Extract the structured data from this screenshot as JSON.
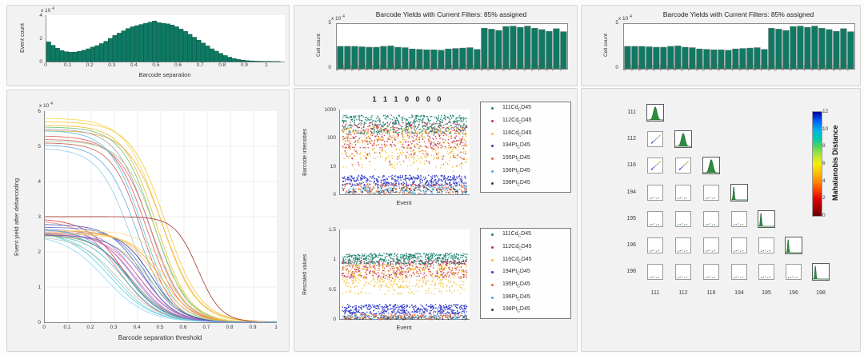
{
  "colors": {
    "panel_bg": "#f2f2f2",
    "panel_border": "#d5d5d5",
    "plot_bg": "#ffffff",
    "axis": "#8c8c8c",
    "grid": "#ececec",
    "bar_fill": "#0f7a63",
    "bar_edge": "#4f6e66",
    "hist_edge": "#0a5546",
    "diag_hist_green": "#2e8b3f"
  },
  "legend": {
    "entries": [
      {
        "label": "111Cd_CD45",
        "pre": "111Cd",
        "sub": "C",
        "post": "D45",
        "color": "#1a7f6e"
      },
      {
        "label": "112Cd_CD45",
        "pre": "112Cd",
        "sub": "C",
        "post": "D45",
        "color": "#c23152"
      },
      {
        "label": "116Cd_CD45",
        "pre": "116Cd",
        "sub": "C",
        "post": "D45",
        "color": "#f3c13a"
      },
      {
        "label": "194Pt_CD45",
        "pre": "194Pt",
        "sub": "C",
        "post": "D45",
        "color": "#2a35c8"
      },
      {
        "label": "195Pt_CD45",
        "pre": "195Pt",
        "sub": "C",
        "post": "D45",
        "color": "#e8622d"
      },
      {
        "label": "196Pt_CD45",
        "pre": "196Pt",
        "sub": "C",
        "post": "D45",
        "color": "#49a8e8"
      },
      {
        "label": "198Pt_CD45",
        "pre": "198Pt",
        "sub": "C",
        "post": "D45",
        "color": "#3a3a3a"
      }
    ]
  },
  "chart_data": [
    {
      "id": "separation_histogram",
      "type": "bar",
      "xlabel": "Barcode separation",
      "ylabel": "Event count",
      "y_exponent_label": "x 10",
      "y_exponent": "4",
      "xlim": [
        0,
        1.08
      ],
      "ylim": [
        0,
        4
      ],
      "xticks": [
        "0",
        "0.1",
        "0.2",
        "0.3",
        "0.4",
        "0.5",
        "0.6",
        "0.7",
        "0.8",
        "0.9",
        "1"
      ],
      "yticks": [
        "0",
        "2",
        "4"
      ],
      "bin_start": 0,
      "bin_width": 0.02,
      "values": [
        1.7,
        1.4,
        1.15,
        0.95,
        0.85,
        0.8,
        0.82,
        0.88,
        0.98,
        1.1,
        1.25,
        1.38,
        1.55,
        1.75,
        2.0,
        2.25,
        2.45,
        2.65,
        2.85,
        3.0,
        3.1,
        3.2,
        3.3,
        3.4,
        3.5,
        3.35,
        3.3,
        3.25,
        3.15,
        3.0,
        2.8,
        2.6,
        2.35,
        2.1,
        1.85,
        1.6,
        1.35,
        1.1,
        0.9,
        0.7,
        0.52,
        0.38,
        0.27,
        0.18,
        0.12,
        0.08,
        0.06,
        0.04,
        0.03,
        0.02,
        0.02,
        0.01,
        0.01
      ]
    },
    {
      "id": "yield_curves",
      "type": "line",
      "xlabel": "Barcode separation threshold",
      "ylabel": "Event yield after debarcoding",
      "y_exponent_label": "x 10",
      "y_exponent": "4",
      "xlim": [
        0,
        1
      ],
      "ylim": [
        0,
        6
      ],
      "xticks": [
        "0",
        "0.1",
        "0.2",
        "0.3",
        "0.4",
        "0.5",
        "0.6",
        "0.7",
        "0.8",
        "0.9",
        "1"
      ],
      "yticks": [
        "0",
        "1",
        "2",
        "3",
        "4",
        "5",
        "6"
      ],
      "grid": true,
      "series": [
        {
          "color": "#f7d842",
          "y0": 5.8,
          "xm": 0.5,
          "s": 0.075
        },
        {
          "color": "#f4c430",
          "y0": 5.7,
          "xm": 0.52,
          "s": 0.075
        },
        {
          "color": "#e9b820",
          "y0": 5.6,
          "xm": 0.48,
          "s": 0.07
        },
        {
          "color": "#f0a63a",
          "y0": 5.45,
          "xm": 0.51,
          "s": 0.075
        },
        {
          "color": "#9e9e9e",
          "y0": 5.5,
          "xm": 0.45,
          "s": 0.07
        },
        {
          "color": "#d9534f",
          "y0": 5.3,
          "xm": 0.44,
          "s": 0.07
        },
        {
          "color": "#e06565",
          "y0": 5.2,
          "xm": 0.46,
          "s": 0.07
        },
        {
          "color": "#c45850",
          "y0": 5.1,
          "xm": 0.42,
          "s": 0.065
        },
        {
          "color": "#67bb6a",
          "y0": 5.55,
          "xm": 0.47,
          "s": 0.07
        },
        {
          "color": "#9ccc8f",
          "y0": 5.15,
          "xm": 0.48,
          "s": 0.07
        },
        {
          "color": "#5aa7e0",
          "y0": 5.05,
          "xm": 0.4,
          "s": 0.07
        },
        {
          "color": "#8ecae6",
          "y0": 4.95,
          "xm": 0.37,
          "s": 0.07
        },
        {
          "color": "#45c3e8",
          "y0": 5.45,
          "xm": 0.42,
          "s": 0.07
        },
        {
          "color": "#9e2b25",
          "y0": 3.0,
          "xm": 0.66,
          "s": 0.05
        },
        {
          "color": "#d32f2f",
          "y0": 2.95,
          "xm": 0.34,
          "s": 0.08
        },
        {
          "color": "#e57373",
          "y0": 2.9,
          "xm": 0.32,
          "s": 0.08
        },
        {
          "color": "#3f51b5",
          "y0": 2.78,
          "xm": 0.42,
          "s": 0.07
        },
        {
          "color": "#5c6bc0",
          "y0": 2.7,
          "xm": 0.44,
          "s": 0.07
        },
        {
          "color": "#7986cb",
          "y0": 2.65,
          "xm": 0.4,
          "s": 0.075
        },
        {
          "color": "#283593",
          "y0": 2.6,
          "xm": 0.46,
          "s": 0.065
        },
        {
          "color": "#9575cd",
          "y0": 2.62,
          "xm": 0.38,
          "s": 0.075
        },
        {
          "color": "#26a69a",
          "y0": 2.55,
          "xm": 0.36,
          "s": 0.08
        },
        {
          "color": "#4db6ac",
          "y0": 2.5,
          "xm": 0.34,
          "s": 0.08
        },
        {
          "color": "#80cbc4",
          "y0": 2.55,
          "xm": 0.3,
          "s": 0.085
        },
        {
          "color": "#4dd0e1",
          "y0": 2.6,
          "xm": 0.28,
          "s": 0.09
        },
        {
          "color": "#81d4fa",
          "y0": 2.5,
          "xm": 0.26,
          "s": 0.09
        },
        {
          "color": "#ffb74d",
          "y0": 2.6,
          "xm": 0.48,
          "s": 0.07
        },
        {
          "color": "#ffa726",
          "y0": 2.55,
          "xm": 0.5,
          "s": 0.07
        },
        {
          "color": "#ffd54f",
          "y0": 2.5,
          "xm": 0.52,
          "s": 0.07
        },
        {
          "color": "#aed581",
          "y0": 2.45,
          "xm": 0.45,
          "s": 0.075
        },
        {
          "color": "#8d6e63",
          "y0": 2.5,
          "xm": 0.37,
          "s": 0.08
        },
        {
          "color": "#b0bec5",
          "y0": 2.45,
          "xm": 0.32,
          "s": 0.085
        },
        {
          "color": "#f06292",
          "y0": 2.5,
          "xm": 0.41,
          "s": 0.075
        },
        {
          "color": "#ba68c8",
          "y0": 2.55,
          "xm": 0.39,
          "s": 0.075
        },
        {
          "color": "#ffe082",
          "y0": 2.6,
          "xm": 0.55,
          "s": 0.065
        },
        {
          "color": "#7e57c2",
          "y0": 2.48,
          "xm": 0.43,
          "s": 0.07
        },
        {
          "color": "#42a5f5",
          "y0": 2.65,
          "xm": 0.35,
          "s": 0.08
        }
      ]
    },
    {
      "id": "barcode_yields",
      "type": "bar",
      "title": "Barcode Yields with Current Filters: 85% assigned",
      "ylabel": "Cell count",
      "y_exponent_label": "x 10",
      "y_exponent": "4",
      "ylim": [
        0,
        5.2
      ],
      "yticks": [
        "0",
        "5"
      ],
      "categories": [
        "0",
        "1110000",
        "1101000",
        "1100100",
        "1100010",
        "1100001",
        "1011000",
        "1010100",
        "1010010",
        "1010001",
        "1001100",
        "1001010",
        "1001001",
        "1000110",
        "1000101",
        "1000011",
        "0111000",
        "0110100",
        "0110010",
        "0110001",
        "0101100",
        "0101010",
        "0101001",
        "0100110",
        "0100101",
        "0100011",
        "0011100",
        "0011010",
        "0011001",
        "0010110",
        "0010101",
        "0010011"
      ],
      "values": [
        2.6,
        2.6,
        2.6,
        2.55,
        2.5,
        2.5,
        2.6,
        2.65,
        2.5,
        2.45,
        2.3,
        2.25,
        2.2,
        2.2,
        2.15,
        2.3,
        2.35,
        2.4,
        2.45,
        2.25,
        4.7,
        4.6,
        4.45,
        4.9,
        4.95,
        4.8,
        4.95,
        4.7,
        4.55,
        4.35,
        4.65,
        4.3
      ]
    },
    {
      "id": "intensity_scatter",
      "type": "scatter",
      "title": "1110000",
      "title_display": "1 1 1 0 0 0 0",
      "xlabel": "Event",
      "ylabel": "Barcode intensities",
      "yticks": [
        "0",
        "10",
        "100",
        "1000"
      ],
      "series": [
        {
          "legend_index": 0,
          "band_frac": [
            0.72,
            0.94
          ],
          "n": 550
        },
        {
          "legend_index": 1,
          "band_frac": [
            0.55,
            0.86
          ],
          "n": 420
        },
        {
          "legend_index": 2,
          "band_frac": [
            0.42,
            0.8
          ],
          "n": 420
        },
        {
          "legend_index": 1,
          "band_frac": [
            0.34,
            0.55
          ],
          "n": 60
        },
        {
          "legend_index": 2,
          "band_frac": [
            0.28,
            0.45
          ],
          "n": 60
        },
        {
          "legend_index": 3,
          "band_frac": [
            0.1,
            0.23
          ],
          "n": 450
        },
        {
          "legend_index": 4,
          "band_frac": [
            0.01,
            0.13
          ],
          "n": 220
        },
        {
          "legend_index": 5,
          "band_frac": [
            0.01,
            0.1
          ],
          "n": 170
        },
        {
          "legend_index": 6,
          "band_frac": [
            0.02,
            0.09
          ],
          "n": 80
        }
      ]
    },
    {
      "id": "rescaled_scatter",
      "type": "scatter",
      "xlabel": "Event",
      "ylabel": "Rescaled values",
      "yticks": [
        "0",
        "0.5",
        "1",
        "1.5"
      ],
      "series": [
        {
          "legend_index": 0,
          "band_frac": [
            0.62,
            0.74
          ],
          "n": 550
        },
        {
          "legend_index": 1,
          "band_frac": [
            0.46,
            0.66
          ],
          "n": 400
        },
        {
          "legend_index": 2,
          "band_frac": [
            0.36,
            0.62
          ],
          "n": 420
        },
        {
          "legend_index": 2,
          "band_frac": [
            0.28,
            0.38
          ],
          "n": 70
        },
        {
          "legend_index": 3,
          "band_frac": [
            0.06,
            0.17
          ],
          "n": 450
        },
        {
          "legend_index": 4,
          "band_frac": [
            0.0,
            0.06
          ],
          "n": 220
        },
        {
          "legend_index": 5,
          "band_frac": [
            0.0,
            0.05
          ],
          "n": 160
        },
        {
          "legend_index": 6,
          "band_frac": [
            0.0,
            0.04
          ],
          "n": 80
        }
      ]
    },
    {
      "id": "mahalanobis_matrix",
      "type": "heatmap",
      "row_labels": [
        "111",
        "112",
        "116",
        "194",
        "195",
        "196",
        "198"
      ],
      "col_labels": [
        "111",
        "112",
        "116",
        "194",
        "195",
        "196",
        "198"
      ],
      "diag_content": [
        "histogram-peak",
        "histogram-peak",
        "histogram-peak",
        "edge-spike",
        "edge-spike",
        "edge-spike",
        "edge-spike"
      ],
      "colorbar": {
        "label": "Mahalanobis Distance",
        "min": 0,
        "max": 12,
        "ticks": [
          "0",
          "2",
          "4",
          "6",
          "8",
          "10",
          "12"
        ],
        "low_color": "#6b0000",
        "high_color": "#0000a0"
      }
    }
  ]
}
